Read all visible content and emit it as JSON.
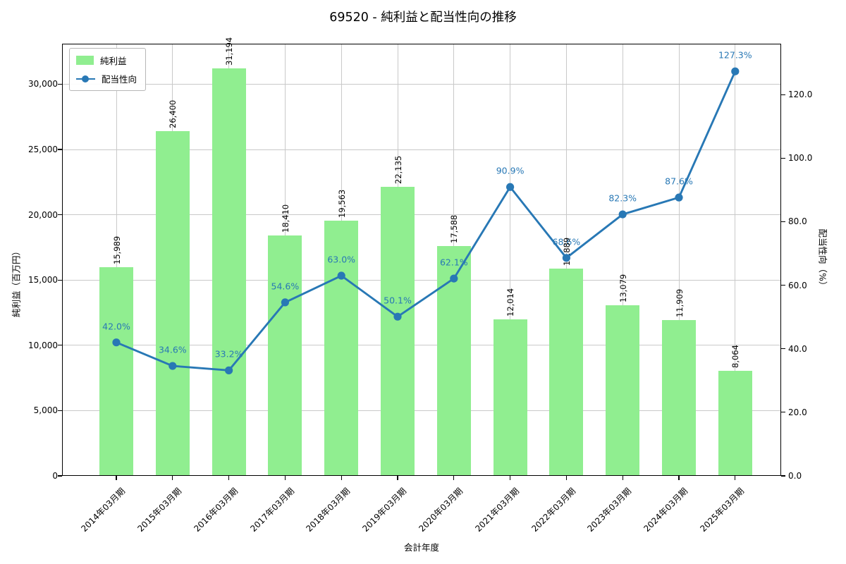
{
  "title": "69520 - 純利益と配当性向の推移",
  "chart_data": {
    "type": "bar+line",
    "title": "69520 - 純利益と配当性向の推移",
    "xlabel": "会計年度",
    "ylabel_left": "純利益（百万円）",
    "ylabel_right": "配当性向（%）",
    "categories": [
      "2014年03月期",
      "2015年03月期",
      "2016年03月期",
      "2017年03月期",
      "2018年03月期",
      "2019年03月期",
      "2020年03月期",
      "2021年03月期",
      "2022年03月期",
      "2023年03月期",
      "2024年03月期",
      "2025年03月期"
    ],
    "series": [
      {
        "name": "純利益",
        "type": "bar",
        "axis": "left",
        "color": "#90ee90",
        "values": [
          15989,
          26400,
          31194,
          18410,
          19563,
          22135,
          17588,
          12014,
          15889,
          13079,
          11909,
          8064
        ],
        "labels": [
          "15,989",
          "26,400",
          "31,194",
          "18,410",
          "19,563",
          "22,135",
          "17,588",
          "12,014",
          "15,889",
          "13,079",
          "11,909",
          "8,064"
        ]
      },
      {
        "name": "配当性向",
        "type": "line",
        "axis": "right",
        "color": "#2878b5",
        "values": [
          42.0,
          34.6,
          33.2,
          54.6,
          63.0,
          50.1,
          62.1,
          90.9,
          68.6,
          82.3,
          87.6,
          127.3
        ],
        "labels": [
          "42.0%",
          "34.6%",
          "33.2%",
          "54.6%",
          "63.0%",
          "50.1%",
          "62.1%",
          "90.9%",
          "68.6%",
          "82.3%",
          "87.6%",
          "127.3%"
        ]
      }
    ],
    "yticks_left": {
      "values": [
        0,
        5000,
        10000,
        15000,
        20000,
        25000,
        30000
      ],
      "labels": [
        "0",
        "5,000",
        "10,000",
        "15,000",
        "20,000",
        "25,000",
        "30,000"
      ]
    },
    "yticks_right": {
      "values": [
        0,
        20,
        40,
        60,
        80,
        100,
        120
      ],
      "labels": [
        "0.0",
        "20.0",
        "40.0",
        "60.0",
        "80.0",
        "100.0",
        "120.0"
      ]
    },
    "ylim_left": [
      0,
      33100
    ],
    "ylim_right": [
      0,
      136
    ],
    "grid": true,
    "legend_position": "upper left",
    "colors": {
      "grid": "#c9c9c9",
      "spine": "#000000",
      "bar": "#90ee90",
      "line": "#2878b5"
    }
  }
}
